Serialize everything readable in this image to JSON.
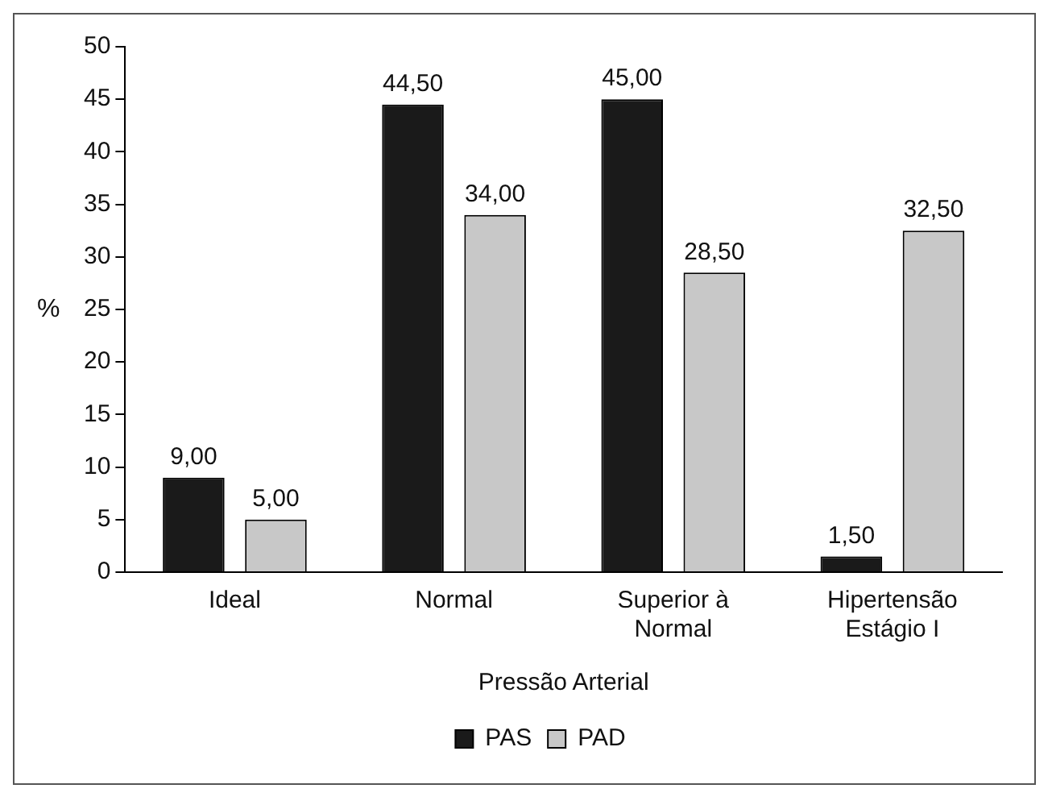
{
  "chart_data": {
    "type": "bar",
    "xlabel": "Pressão Arterial",
    "ylabel": "%",
    "categories": [
      "Ideal",
      "Normal",
      "Superior à Normal",
      "Hipertensão Estágio I"
    ],
    "series": [
      {
        "name": "PAS",
        "color": "#1a1a1a",
        "values": [
          9,
          44.5,
          45,
          1.5
        ],
        "value_labels": [
          "9,00",
          "44,50",
          "45,00",
          "1,50"
        ]
      },
      {
        "name": "PAD",
        "color": "#c8c8c8",
        "values": [
          5,
          34,
          28.5,
          32.5
        ],
        "value_labels": [
          "5,00",
          "34,00",
          "28,50",
          "32,50"
        ]
      }
    ],
    "ylim": [
      0,
      50
    ],
    "yticks": [
      0,
      5,
      10,
      15,
      20,
      25,
      30,
      35,
      40,
      45,
      50
    ],
    "grid": false,
    "legend": "bottom"
  }
}
